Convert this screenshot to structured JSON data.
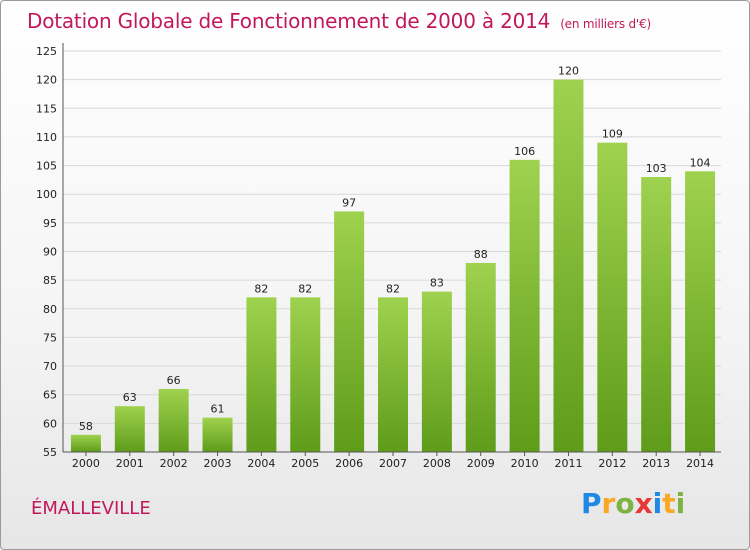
{
  "header": {
    "title": "Dotation Globale de Fonctionnement de 2000 à 2014",
    "subtitle": "(en milliers d'€)"
  },
  "footer": {
    "commune": "ÉMALLEVILLE",
    "brand_letters": [
      "P",
      "r",
      "o",
      "x",
      "i",
      "t",
      "i"
    ],
    "brand_colors": [
      "#1e88e5",
      "#f9a825",
      "#7cb342",
      "#e53935",
      "#1e88e5",
      "#f9a825",
      "#7cb342"
    ]
  },
  "chart_data": {
    "type": "bar",
    "categories": [
      "2000",
      "2001",
      "2002",
      "2003",
      "2004",
      "2005",
      "2006",
      "2007",
      "2008",
      "2009",
      "2010",
      "2011",
      "2012",
      "2013",
      "2014"
    ],
    "values": [
      58,
      63,
      66,
      61,
      82,
      82,
      97,
      82,
      83,
      88,
      106,
      120,
      109,
      103,
      104
    ],
    "ylim": [
      55,
      125
    ],
    "yticks": [
      55,
      60,
      65,
      70,
      75,
      80,
      85,
      90,
      95,
      100,
      105,
      110,
      115,
      120,
      125
    ],
    "grid": true,
    "bar_color": "#7cb82f"
  }
}
